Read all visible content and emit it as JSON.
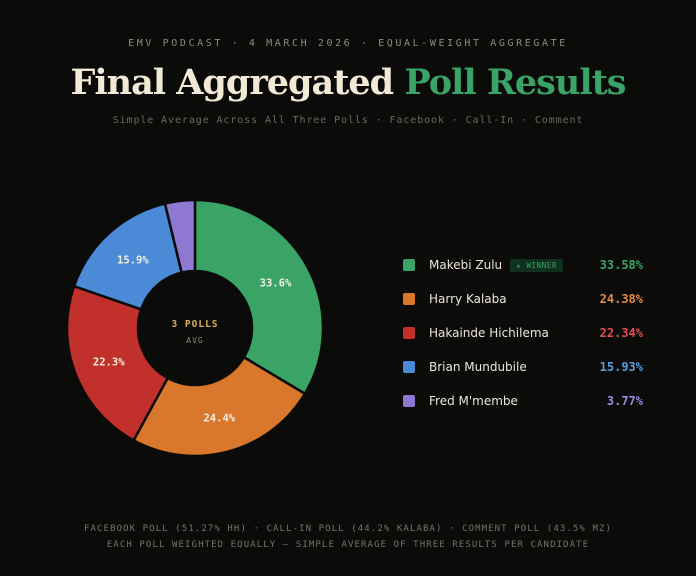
{
  "header": {
    "kicker": "EMV PODCAST · 4 MARCH 2026 · EQUAL-WEIGHT AGGREGATE",
    "title_part1": "Final Aggregated",
    "title_part2": "Poll Results",
    "subtitle": "Simple Average Across All Three Polls · Facebook · Call-In · Comment"
  },
  "center_label": {
    "line1": "3 POLLS",
    "line2": "AVG"
  },
  "legend": {
    "winner_badge": "★ WINNER"
  },
  "chart_data": {
    "type": "pie",
    "categories": [
      "Makebi Zulu",
      "Harry Kalaba",
      "Hakainde Hichilema",
      "Brian Mundubile",
      "Fred M'membe"
    ],
    "values": [
      33.58,
      24.38,
      22.34,
      15.93,
      3.77
    ],
    "slice_labels": [
      "33.6%",
      "24.4%",
      "22.3%",
      "15.9%",
      ""
    ],
    "legend_values": [
      "33.58%",
      "24.38%",
      "22.34%",
      "15.93%",
      "3.77%"
    ],
    "colors": [
      "#3aa466",
      "#d9782c",
      "#c2302c",
      "#4a8ad6",
      "#8f78d2"
    ],
    "value_colors": [
      "#3aa466",
      "#e08a4a",
      "#e05050",
      "#5a9de0",
      "#9a88e0"
    ],
    "winner": "Makebi Zulu",
    "donut": true,
    "legend_position": "right"
  },
  "footer": {
    "line1": "FACEBOOK POLL (51.27% HH) · CALL-IN POLL (44.2% KALABA) · COMMENT POLL (43.5% MZ)",
    "line2": "EACH POLL WEIGHTED EQUALLY — SIMPLE AVERAGE OF THREE RESULTS PER CANDIDATE"
  }
}
